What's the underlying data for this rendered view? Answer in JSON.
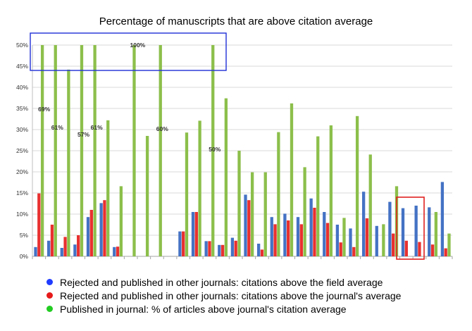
{
  "chart_data": {
    "type": "bar",
    "title": "Percentage of manuscripts that are above citation average",
    "ylim": [
      0,
      50
    ],
    "y_ticks": [
      "0%",
      "5%",
      "10%",
      "15%",
      "20%",
      "25%",
      "30%",
      "35%",
      "40%",
      "45%",
      "50%"
    ],
    "grid": true,
    "series": [
      {
        "name": "Rejected and published in other journals: citations above the field average",
        "color": "#4472C4",
        "values": [
          2.2,
          3.7,
          2.0,
          2.8,
          9.3,
          12.6,
          2.2,
          null,
          null,
          null,
          null,
          5.9,
          10.5,
          3.6,
          2.7,
          4.4,
          14.6,
          3.0,
          9.3,
          10.1,
          9.3,
          13.7,
          10.5,
          7.5,
          6.6,
          15.3,
          7.2,
          12.9,
          11.4,
          12.0,
          11.6,
          17.6
        ]
      },
      {
        "name": "Rejected and published in other journals: citations above the journal's average",
        "color": "#E8302F",
        "values": [
          14.9,
          7.5,
          4.6,
          5.0,
          11.0,
          13.3,
          2.3,
          null,
          null,
          null,
          null,
          5.9,
          10.5,
          3.6,
          2.7,
          3.7,
          13.3,
          1.6,
          7.6,
          8.5,
          7.6,
          11.5,
          7.9,
          3.3,
          2.2,
          9.0,
          null,
          5.4,
          3.7,
          3.4,
          2.8,
          1.9
        ]
      },
      {
        "name": "Published in journal: % of articles above journal's citation average",
        "color": "#8CBF4B",
        "values": [
          50,
          50,
          44.2,
          50,
          50,
          32.2,
          16.6,
          50,
          28.5,
          50,
          null,
          29.3,
          32.1,
          50,
          37.4,
          25.0,
          19.9,
          19.9,
          29.4,
          36.2,
          21.1,
          28.4,
          31.0,
          9.1,
          33.2,
          24.1,
          7.6,
          16.6,
          null,
          null,
          10.5,
          5.4
        ]
      }
    ],
    "annotations": [
      {
        "text": "69%",
        "group": 0
      },
      {
        "text": "61%",
        "group": 1
      },
      {
        "text": "57%",
        "group": 3
      },
      {
        "text": "61%",
        "group": 4
      },
      {
        "text": "100%",
        "group": 7
      },
      {
        "text": "60%",
        "group": 9
      },
      {
        "text": "50%",
        "group": 13
      }
    ],
    "highlight_blue_box": "top-left",
    "highlight_red_box": "lower-right"
  }
}
